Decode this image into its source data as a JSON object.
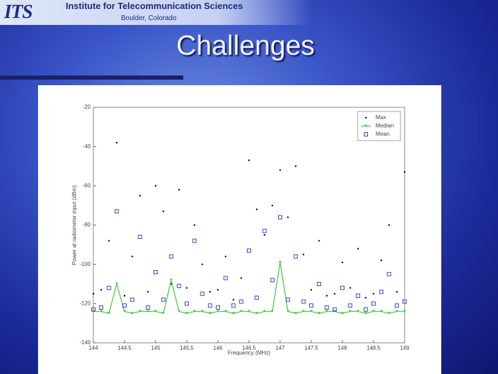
{
  "slide": {
    "logo": "ITS",
    "organization": "Institute for Telecommunication Sciences",
    "location": "Boulder, Colorado",
    "title": "Challenges"
  },
  "chart_data": {
    "type": "scatter",
    "xlabel": "Frequency (MHz)",
    "ylabel": "Power at radiometer input (dBm)",
    "x": [
      144,
      144.125,
      144.25,
      144.375,
      144.5,
      144.625,
      144.75,
      144.875,
      145,
      145.125,
      145.25,
      145.375,
      145.5,
      145.625,
      145.75,
      145.875,
      146,
      146.125,
      146.25,
      146.375,
      146.5,
      146.625,
      146.75,
      146.875,
      147,
      147.125,
      147.25,
      147.375,
      147.5,
      147.625,
      147.75,
      147.875,
      148,
      148.125,
      148.25,
      148.375,
      148.5,
      148.625,
      148.75,
      148.875,
      149
    ],
    "series": [
      {
        "name": "Max",
        "color": "#000000",
        "marker": "dot",
        "values": [
          -115,
          -113,
          -88,
          -38,
          -116,
          -96,
          -65,
          -114,
          -60,
          -73,
          -110,
          -62,
          -112,
          -80,
          -100,
          -114,
          -113,
          -96,
          -118,
          -107,
          -47,
          -72,
          -85,
          -70,
          -52,
          -76,
          -50,
          -95,
          -113,
          -88,
          -116,
          -115,
          -99,
          -112,
          -92,
          -117,
          -115,
          -98,
          -80,
          -114,
          -53
        ]
      },
      {
        "name": "Median",
        "color": "#33cc33",
        "marker": "line",
        "values": [
          -124,
          -124,
          -125,
          -110,
          -124,
          -125,
          -124,
          -124,
          -124,
          -125,
          -108,
          -124,
          -125,
          -124,
          -124,
          -125,
          -124,
          -124,
          -125,
          -124,
          -124,
          -125,
          -124,
          -124,
          -99,
          -124,
          -125,
          -124,
          -124,
          -125,
          -124,
          -124,
          -125,
          -124,
          -124,
          -125,
          -124,
          -124,
          -125,
          -124,
          -124
        ]
      },
      {
        "name": "Mean",
        "color": "#3344cc",
        "marker": "square",
        "values": [
          -123,
          -122,
          -112,
          -73,
          -121,
          -118,
          -86,
          -122,
          -104,
          -118,
          -96,
          -111,
          -120,
          -88,
          -115,
          -121,
          -122,
          -107,
          -121,
          -119,
          -93,
          -117,
          -83,
          -108,
          -76,
          -118,
          -96,
          -119,
          -121,
          -110,
          -122,
          -123,
          -112,
          -121,
          -116,
          -123,
          -120,
          -114,
          -105,
          -121,
          -119
        ]
      }
    ],
    "xlim": [
      144,
      149
    ],
    "xticks": [
      144,
      144.5,
      145,
      145.5,
      146,
      146.5,
      147,
      147.5,
      148,
      148.5,
      149
    ],
    "ylim": [
      -140,
      -20
    ],
    "yticks": [
      -20,
      -40,
      -60,
      -80,
      -100,
      -120,
      -140
    ],
    "grid": false,
    "legend": "upper right"
  }
}
